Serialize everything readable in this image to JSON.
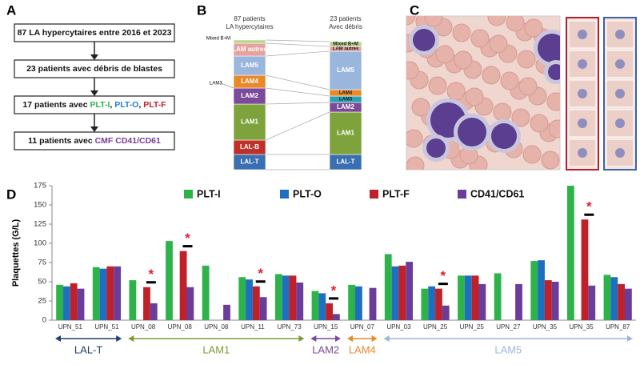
{
  "panel_a": {
    "label": "A",
    "steps": [
      [
        {
          "text": "87 LA hypercytaires entre 2016 et 2023"
        }
      ],
      [
        {
          "text": "23 patients avec débris de blastes"
        }
      ],
      [
        {
          "text": "17 patients avec "
        },
        {
          "text": "PLT-I",
          "color": "#2db34a"
        },
        {
          "text": ", "
        },
        {
          "text": "PLT-O",
          "color": "#1f7fd0"
        },
        {
          "text": ", "
        },
        {
          "text": "PLT-F",
          "color": "#c0202a"
        }
      ],
      [
        {
          "text": "11 patients avec "
        },
        {
          "text": "CMF CD41/CD61",
          "color": "#7a3b9c"
        }
      ]
    ]
  },
  "panel_b": {
    "label": "B",
    "left": {
      "header": [
        "87 patients",
        "LA hypercytaires"
      ],
      "segments": [
        {
          "label": "LAL-T",
          "color": "#3a6fb0"
        },
        {
          "label": "LAL-B",
          "color": "#c0302a"
        },
        {
          "label": "LAM1",
          "color": "#7ea33c"
        },
        {
          "label": "LAM2",
          "color": "#7b4a9a"
        },
        {
          "label": "LAM4",
          "color": "#e8892a"
        },
        {
          "label": "LAM5",
          "color": "#9bb6dd"
        },
        {
          "label": "LAM autres",
          "color": "#e7a2a0"
        },
        {
          "label": "Mixed B+M",
          "color": "#b7d58c"
        }
      ]
    },
    "right": {
      "header": [
        "23 patients",
        "Avec débris"
      ],
      "segments": [
        {
          "label": "LAL-T",
          "color": "#3a6fb0"
        },
        {
          "label": "LAM1",
          "color": "#7ea33c"
        },
        {
          "label": "LAM2",
          "color": "#7b4a9a"
        },
        {
          "label": "LAM3",
          "color": "#2e9fae"
        },
        {
          "label": "LAM4",
          "color": "#e8892a"
        },
        {
          "label": "LAM5",
          "color": "#9bb6dd"
        },
        {
          "label": "LAM autres",
          "color": "#e7a2a0"
        },
        {
          "label": "Mixed B+M",
          "color": "#b7d58c"
        }
      ]
    },
    "side_label": "LAM3"
  },
  "panel_c": {
    "label": "C"
  },
  "chart_data": {
    "type": "bar",
    "label": "D",
    "ylabel": "Plaquettes (G/L)",
    "categories": [
      "UPN_51",
      "UPN_51",
      "UPN_08",
      "UPN_08",
      "UPN_08",
      "UPN_11",
      "UPN_73",
      "UPN_15",
      "UPN_07",
      "UPN_03",
      "UPN_25",
      "UPN_25",
      "UPN_27",
      "UPN_35",
      "UPN_35",
      "UPN_87"
    ],
    "series": [
      {
        "name": "PLT-I",
        "color": "#2db34a",
        "values": [
          46,
          69,
          52,
          103,
          71,
          56,
          60,
          38,
          46,
          86,
          41,
          58,
          61,
          77,
          175,
          59
        ]
      },
      {
        "name": "PLT-O",
        "color": "#1f6fc0",
        "values": [
          44,
          67,
          null,
          null,
          null,
          53,
          58,
          35,
          44,
          70,
          44,
          58,
          null,
          78,
          null,
          56
        ]
      },
      {
        "name": "PLT-F",
        "color": "#c0202a",
        "values": [
          48,
          70,
          43,
          90,
          null,
          44,
          58,
          22,
          null,
          71,
          41,
          58,
          null,
          52,
          131,
          47
        ]
      },
      {
        "name": "CD41/CD61",
        "color": "#6a3d9a",
        "values": [
          41,
          70,
          22,
          43,
          20,
          30,
          49,
          8,
          42,
          76,
          19,
          47,
          47,
          50,
          45,
          41
        ]
      }
    ],
    "ylim": [
      0,
      175
    ],
    "yticks": [
      0,
      25,
      50,
      75,
      100,
      125,
      150,
      175
    ],
    "annotation": "*",
    "groups": [
      {
        "label": "LAL-T",
        "color": "#1f3f6e"
      },
      {
        "label": "LAM1",
        "color": "#7e9a3a"
      },
      {
        "label": "LAM2",
        "color": "#7b4a9a"
      },
      {
        "label": "LAM4",
        "color": "#e8892a"
      },
      {
        "label": "LAM5",
        "color": "#9bb6dd"
      }
    ]
  }
}
